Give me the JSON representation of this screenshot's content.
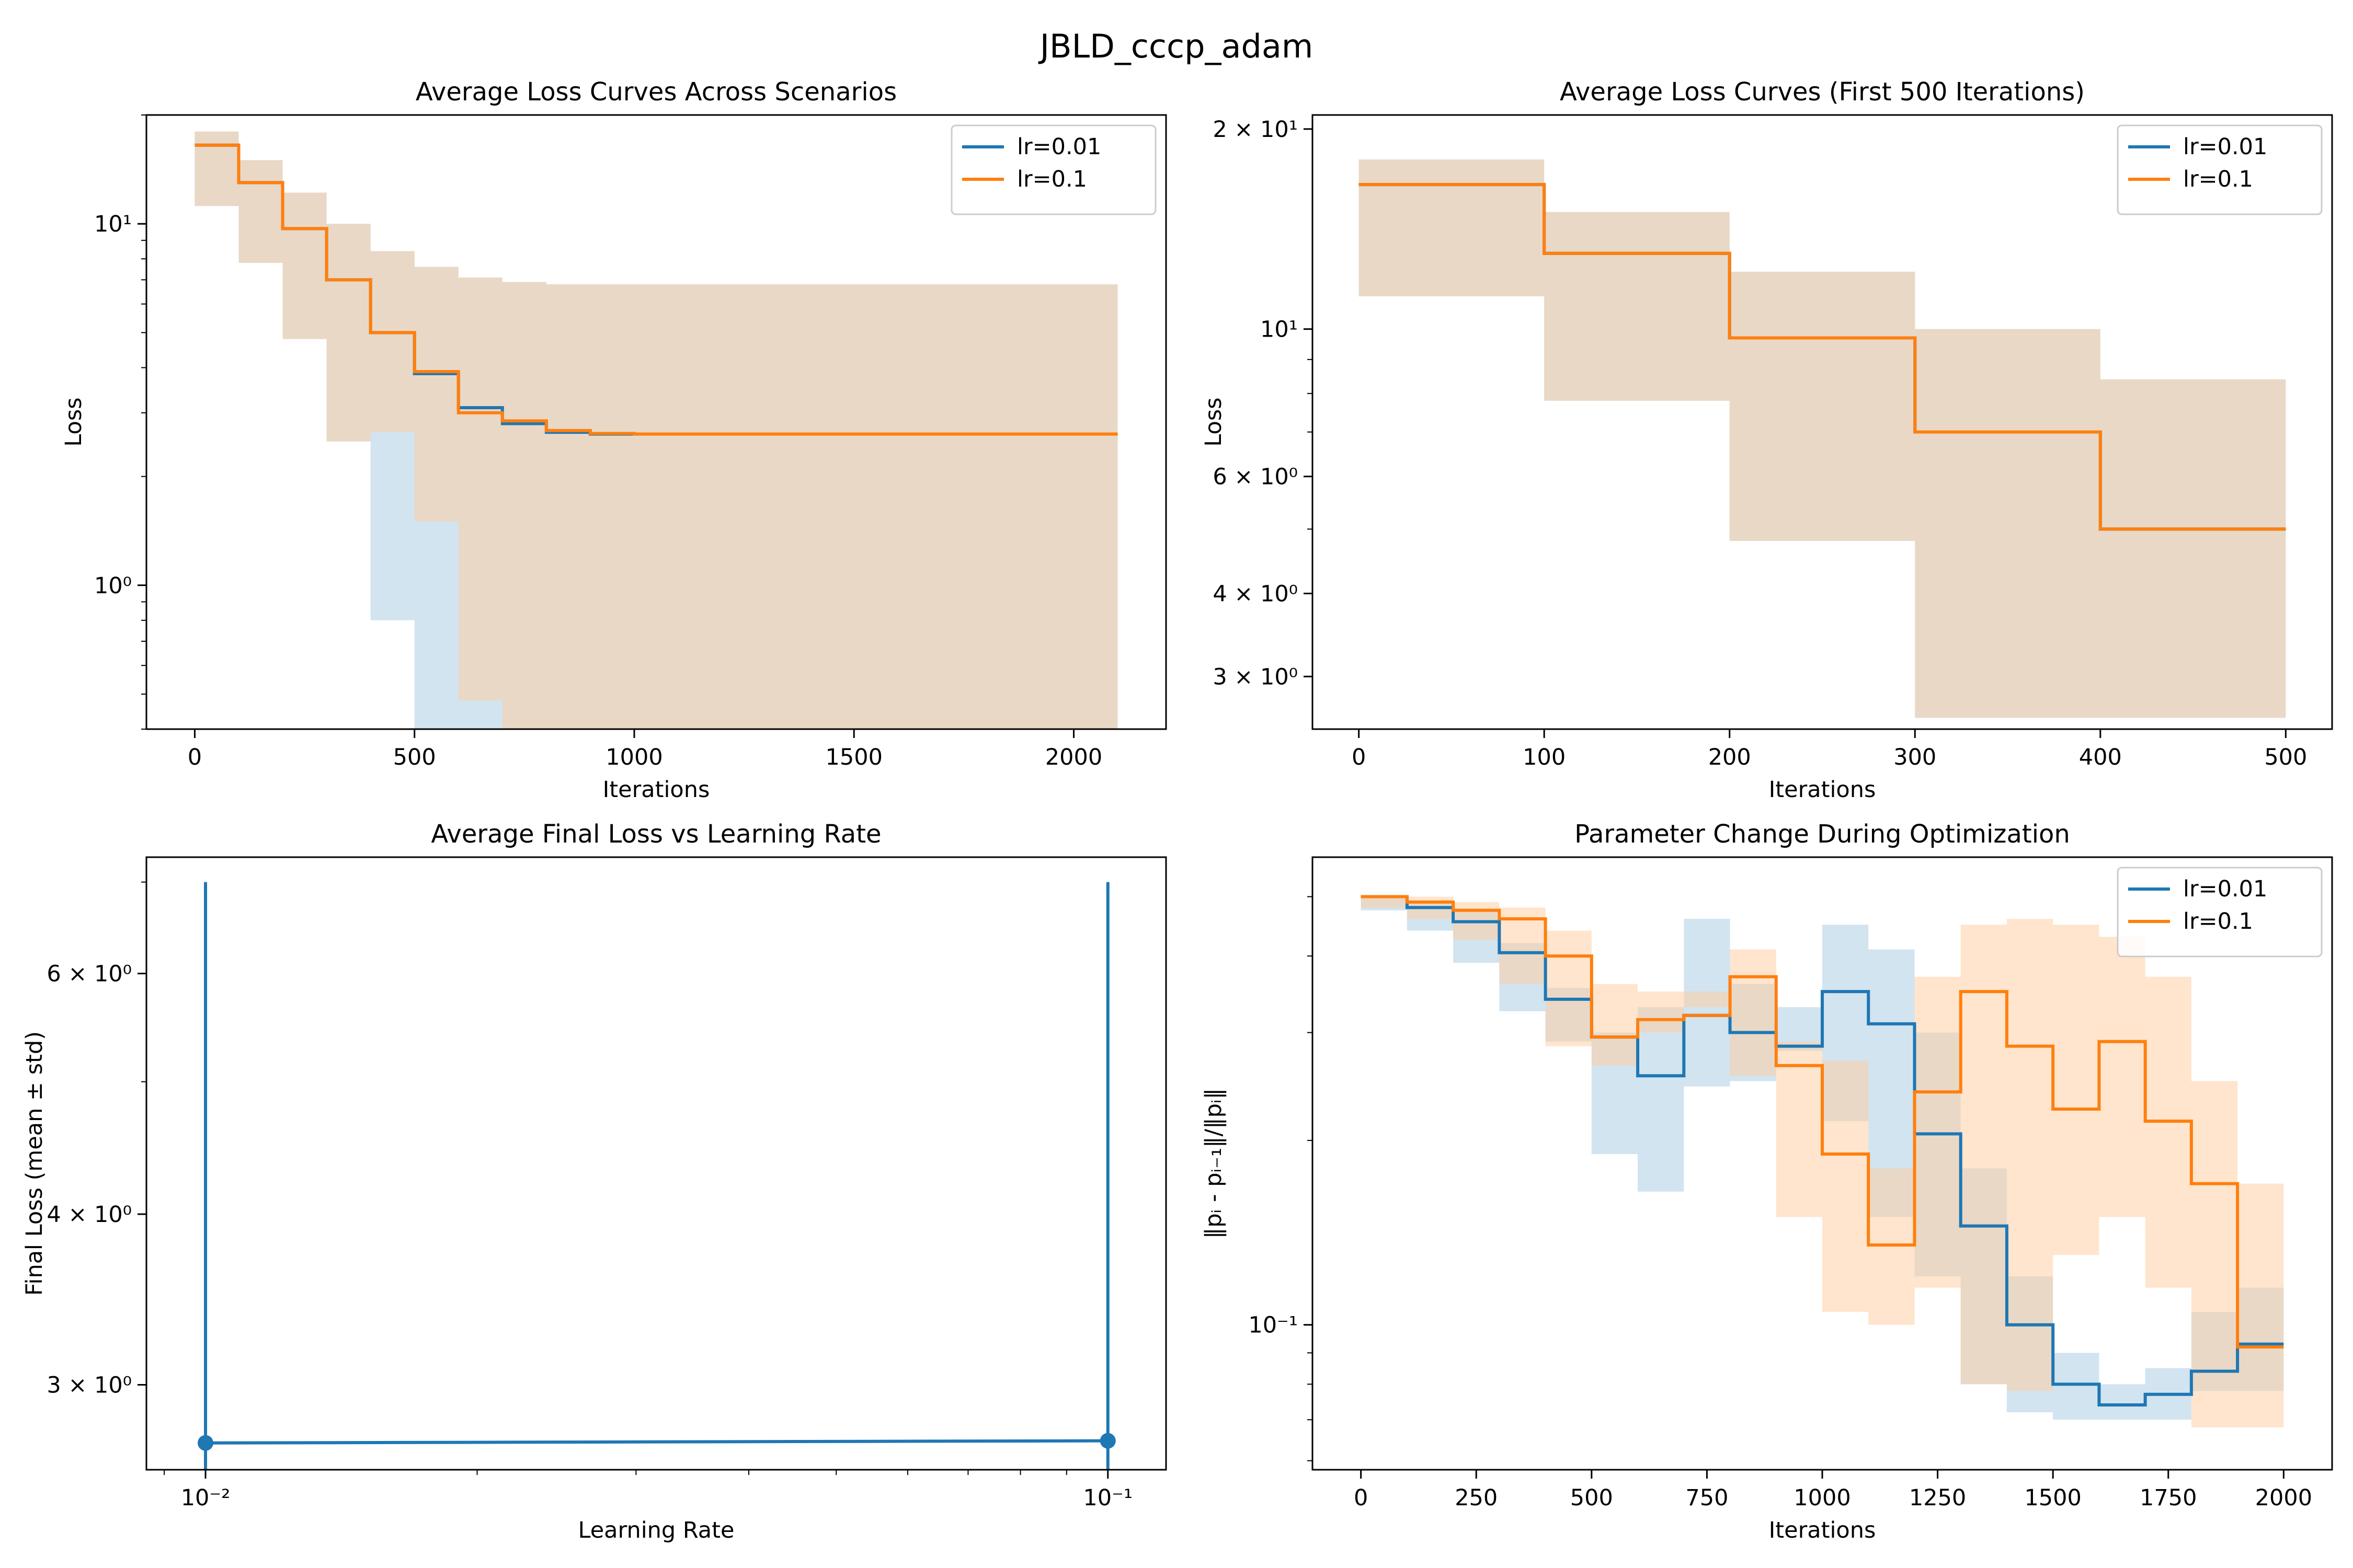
{
  "figure": {
    "title": "JBLD_cccp_adam"
  },
  "colors": {
    "lr001": "#1f77b4",
    "lr01": "#ff7f0e",
    "band_lr001": "#a6c9e2",
    "band_lr01": "#ffcc9c",
    "band_overlap": "#d6c8ba"
  },
  "chart_data": [
    {
      "id": "loss_full",
      "type": "line",
      "step": true,
      "title": "Average Loss Curves Across Scenarios",
      "xlabel": "Iterations",
      "ylabel": "Loss",
      "xlim": [
        -110,
        2210
      ],
      "ylim": [
        0.4,
        20
      ],
      "yscale": "log",
      "grid": false,
      "legend": "top-right",
      "xticks": [
        0,
        500,
        1000,
        1500,
        2000
      ],
      "xtick_labels": [
        "0",
        "500",
        "1000",
        "1500",
        "2000"
      ],
      "yticks": [
        1,
        10
      ],
      "ytick_labels": [
        "10⁰",
        "10¹"
      ],
      "x": [
        0,
        100,
        200,
        300,
        400,
        500,
        600,
        700,
        800,
        900,
        1000,
        2100
      ],
      "series": [
        {
          "name": "lr=0.01",
          "color_key": "lr001",
          "values": [
            16.5,
            13.0,
            9.7,
            7.0,
            5.0,
            3.85,
            3.1,
            2.8,
            2.65,
            2.62,
            2.62,
            2.62
          ],
          "lower": [
            15.0,
            11.2,
            7.8,
            4.8,
            2.5,
            0.8,
            0.4,
            0.4,
            0.4,
            0.4,
            0.4,
            0.4
          ],
          "upper": [
            18.0,
            15.0,
            12.2,
            10.0,
            8.4,
            7.6,
            7.1,
            6.9,
            6.8,
            6.8,
            6.8,
            6.8
          ],
          "band_lower_hint": [
            15.0,
            11.2,
            7.8,
            4.8,
            2.5,
            0.8,
            0.4,
            0.4,
            0.4,
            0.63,
            0.4,
            0.4
          ]
        },
        {
          "name": "lr=0.1",
          "color_key": "lr01",
          "values": [
            16.5,
            13.0,
            9.7,
            7.0,
            5.0,
            3.9,
            3.0,
            2.85,
            2.68,
            2.63,
            2.62,
            2.62
          ],
          "lower": [
            15.0,
            11.2,
            7.8,
            4.8,
            2.5,
            2.65,
            1.5,
            0.48,
            0.4,
            0.4,
            0.4,
            0.4
          ],
          "upper": [
            18.0,
            15.0,
            12.2,
            10.0,
            8.4,
            7.6,
            7.1,
            6.9,
            6.8,
            6.8,
            6.8,
            6.8
          ]
        }
      ]
    },
    {
      "id": "loss_first500",
      "type": "line",
      "step": true,
      "title": "Average Loss Curves (First 500 Iterations)",
      "xlabel": "Iterations",
      "ylabel": "Loss",
      "xlim": [
        -25,
        525
      ],
      "ylim": [
        2.5,
        21
      ],
      "yscale": "log",
      "grid": false,
      "legend": "top-right",
      "xticks": [
        0,
        100,
        200,
        300,
        400,
        500
      ],
      "xtick_labels": [
        "0",
        "100",
        "200",
        "300",
        "400",
        "500"
      ],
      "yticks": [
        3,
        4,
        6,
        10,
        20
      ],
      "ytick_labels": [
        "3 × 10⁰",
        "4 × 10⁰",
        "6 × 10⁰",
        "10¹",
        "2 × 10¹"
      ],
      "x": [
        0,
        100,
        200,
        300,
        400,
        500
      ],
      "series": [
        {
          "name": "lr=0.01",
          "color_key": "lr001",
          "values": [
            16.5,
            13.0,
            9.7,
            7.0,
            5.0,
            5.0
          ],
          "lower": [
            15.0,
            11.2,
            7.8,
            4.8,
            2.6,
            2.6
          ],
          "upper": [
            18.0,
            15.0,
            12.2,
            10.0,
            8.4,
            8.4
          ]
        },
        {
          "name": "lr=0.1",
          "color_key": "lr01",
          "values": [
            16.5,
            13.0,
            9.7,
            7.0,
            5.0,
            5.0
          ],
          "lower": [
            15.0,
            11.2,
            7.8,
            4.8,
            2.6,
            2.6
          ],
          "upper": [
            18.0,
            15.0,
            12.2,
            10.0,
            8.4,
            8.4
          ]
        }
      ]
    },
    {
      "id": "final_loss",
      "type": "line",
      "title": "Average Final Loss vs Learning Rate",
      "xlabel": "Learning Rate",
      "ylabel": "Final Loss (mean ± std)",
      "xscale": "log",
      "yscale": "log",
      "xlim": [
        0.0086,
        0.116
      ],
      "ylim": [
        2.6,
        7.3
      ],
      "grid": false,
      "xticks": [
        0.01,
        0.1
      ],
      "xtick_labels": [
        "10⁻²",
        "10⁻¹"
      ],
      "yticks": [
        3,
        4,
        6
      ],
      "ytick_labels": [
        "3 × 10⁰",
        "4 × 10⁰",
        "6 × 10⁰"
      ],
      "x": [
        0.01,
        0.1
      ],
      "values": [
        2.72,
        2.73
      ],
      "err_upper": [
        7.0,
        7.0
      ],
      "err_lower": [
        2.6,
        2.6
      ]
    },
    {
      "id": "param_change",
      "type": "line",
      "step": true,
      "title": "Parameter Change During Optimization",
      "xlabel": "Iterations",
      "ylabel": "‖pᵢ - pᵢ₋₁‖/‖pᵢ‖",
      "xlim": [
        -105,
        2105
      ],
      "ylim": [
        0.058,
        0.58
      ],
      "yscale": "log",
      "grid": false,
      "legend": "top-right",
      "xticks": [
        0,
        250,
        500,
        750,
        1000,
        1250,
        1500,
        1750,
        2000
      ],
      "xtick_labels": [
        "0",
        "250",
        "500",
        "750",
        "1000",
        "1250",
        "1500",
        "1750",
        "2000"
      ],
      "yticks": [
        0.1
      ],
      "ytick_labels": [
        "10⁻¹"
      ],
      "x": [
        0,
        100,
        200,
        300,
        400,
        500,
        600,
        700,
        800,
        900,
        1000,
        1100,
        1200,
        1300,
        1400,
        1500,
        1600,
        1700,
        1800,
        1900,
        2000
      ],
      "series": [
        {
          "name": "lr=0.01",
          "color_key": "lr001",
          "values": [
            0.5,
            0.48,
            0.455,
            0.405,
            0.34,
            0.295,
            0.255,
            0.32,
            0.3,
            0.285,
            0.35,
            0.31,
            0.205,
            0.145,
            0.1,
            0.08,
            0.074,
            0.077,
            0.084,
            0.093,
            0.093
          ],
          "lower": [
            0.5,
            0.475,
            0.44,
            0.39,
            0.325,
            0.29,
            0.19,
            0.165,
            0.245,
            0.25,
            0.28,
            0.215,
            0.15,
            0.12,
            0.08,
            0.072,
            0.07,
            0.07,
            0.07,
            0.078,
            0.078
          ],
          "upper": [
            0.5,
            0.49,
            0.475,
            0.42,
            0.355,
            0.3,
            0.33,
            0.46,
            0.36,
            0.33,
            0.45,
            0.41,
            0.3,
            0.18,
            0.12,
            0.09,
            0.08,
            0.085,
            0.105,
            0.115,
            0.115
          ]
        },
        {
          "name": "lr=0.1",
          "color_key": "lr01",
          "values": [
            0.5,
            0.49,
            0.475,
            0.46,
            0.4,
            0.295,
            0.315,
            0.32,
            0.37,
            0.265,
            0.19,
            0.135,
            0.24,
            0.35,
            0.285,
            0.225,
            0.29,
            0.215,
            0.17,
            0.092,
            0.092
          ],
          "lower": [
            0.5,
            0.48,
            0.46,
            0.425,
            0.36,
            0.285,
            0.265,
            0.3,
            0.33,
            0.255,
            0.15,
            0.105,
            0.1,
            0.115,
            0.08,
            0.078,
            0.13,
            0.15,
            0.115,
            0.068,
            0.068
          ],
          "upper": [
            0.5,
            0.5,
            0.49,
            0.48,
            0.44,
            0.36,
            0.35,
            0.35,
            0.41,
            0.29,
            0.27,
            0.18,
            0.37,
            0.45,
            0.46,
            0.45,
            0.43,
            0.37,
            0.25,
            0.17,
            0.17
          ]
        }
      ]
    }
  ]
}
